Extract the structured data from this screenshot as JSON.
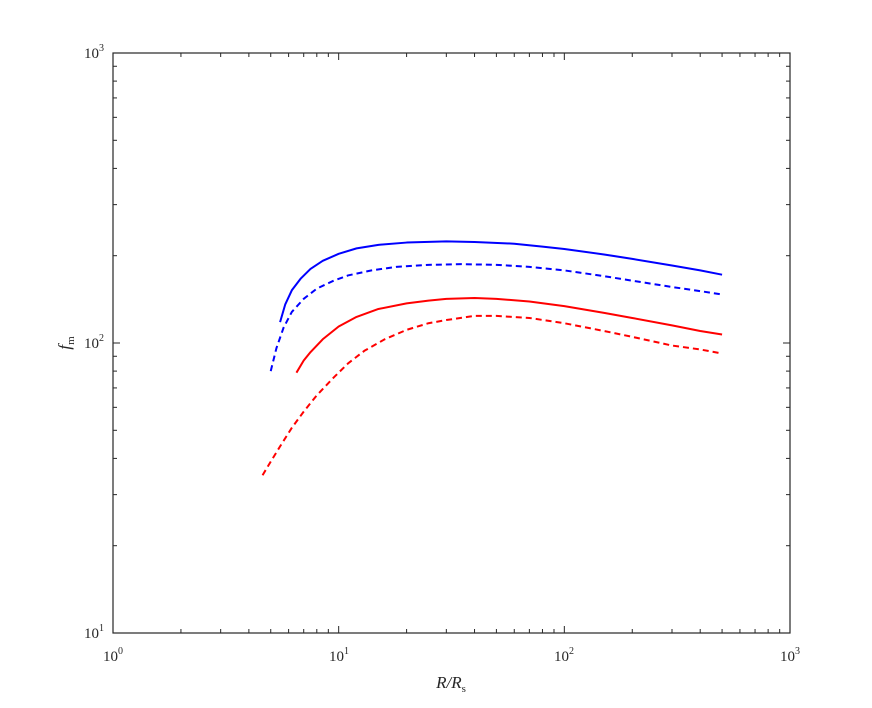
{
  "chart_data": {
    "type": "line",
    "xscale": "log",
    "yscale": "log",
    "xlim": [
      1,
      1000
    ],
    "ylim": [
      10,
      1000
    ],
    "xticks": [
      {
        "base": "10",
        "exp": "0"
      },
      {
        "base": "10",
        "exp": "1"
      },
      {
        "base": "10",
        "exp": "2"
      },
      {
        "base": "10",
        "exp": "3"
      }
    ],
    "yticks": [
      {
        "base": "10",
        "exp": "1"
      },
      {
        "base": "10",
        "exp": "2"
      },
      {
        "base": "10",
        "exp": "3"
      }
    ],
    "xlabel": {
      "main": "R/R",
      "sub": "s"
    },
    "ylabel": {
      "main": "f",
      "sub": "m"
    },
    "grid": false,
    "series": [
      {
        "color": "#0000ff",
        "dash": "solid",
        "x": [
          5.5,
          5.8,
          6.2,
          6.8,
          7.5,
          8.5,
          10,
          12,
          15,
          20,
          30,
          40,
          60,
          80,
          100,
          150,
          200,
          300,
          400,
          500
        ],
        "y": [
          118,
          136,
          152,
          167,
          180,
          192,
          203,
          212,
          218,
          222,
          224,
          223,
          220,
          215,
          211,
          202,
          195,
          185,
          178,
          172
        ]
      },
      {
        "color": "#0000ff",
        "dash": "dashed",
        "x": [
          5.0,
          5.3,
          5.7,
          6.2,
          7.0,
          8.0,
          9.5,
          11,
          14,
          18,
          25,
          35,
          50,
          70,
          100,
          150,
          200,
          300,
          400,
          500
        ],
        "y": [
          80,
          96,
          113,
          128,
          142,
          154,
          164,
          171,
          178,
          183,
          186,
          187,
          186,
          183,
          178,
          170,
          164,
          156,
          151,
          147
        ]
      },
      {
        "color": "#ff0000",
        "dash": "solid",
        "x": [
          6.5,
          7,
          7.5,
          8.5,
          10,
          12,
          15,
          20,
          25,
          30,
          40,
          50,
          70,
          100,
          150,
          200,
          300,
          400,
          500
        ],
        "y": [
          79,
          87,
          93,
          103,
          114,
          123,
          131,
          137,
          140,
          142,
          143,
          142,
          139,
          134,
          127,
          122,
          115,
          110,
          107
        ]
      },
      {
        "color": "#ff0000",
        "dash": "dashed",
        "x": [
          4.6,
          5,
          5.5,
          6.2,
          7,
          8,
          9.5,
          11,
          13,
          16,
          20,
          25,
          30,
          40,
          50,
          70,
          100,
          150,
          200,
          300,
          400,
          500
        ],
        "y": [
          35,
          39,
          44,
          51,
          58,
          66,
          76,
          85,
          94,
          103,
          111,
          117,
          120,
          124,
          124,
          122,
          117,
          110,
          105,
          98,
          95,
          92
        ]
      }
    ]
  }
}
